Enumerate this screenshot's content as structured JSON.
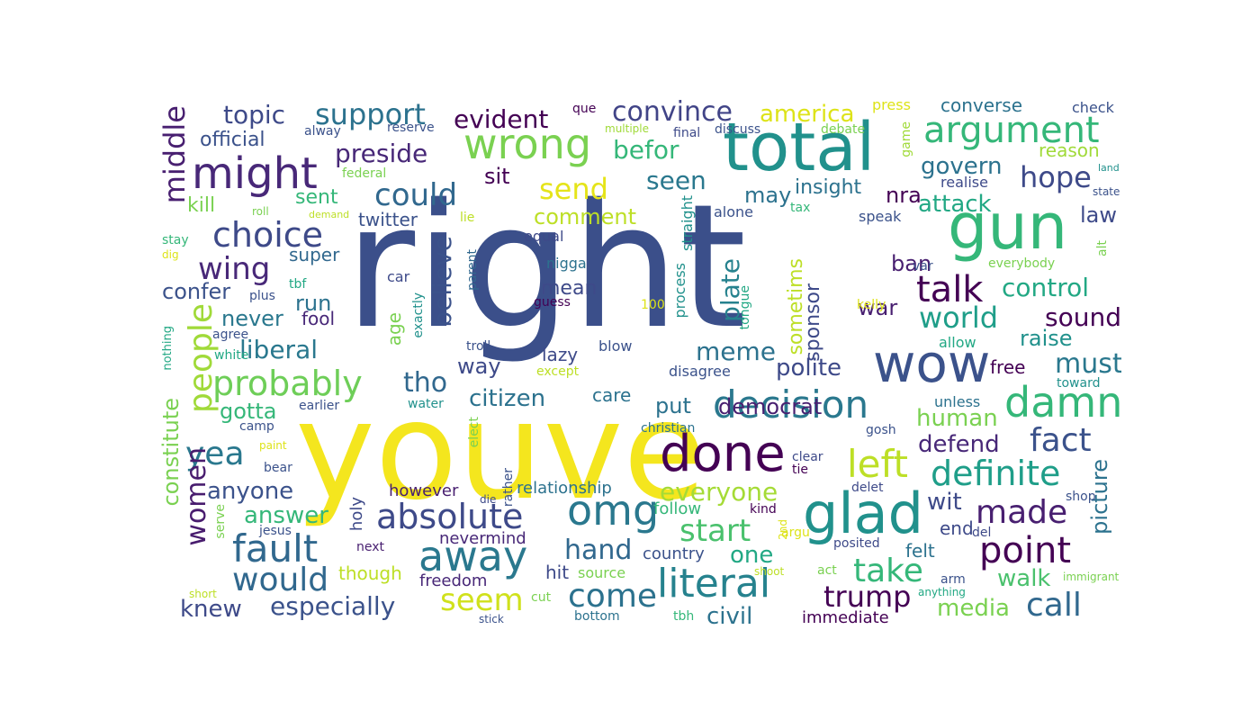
{
  "colors": {
    "background": "#ffffff",
    "palette": [
      "#440154",
      "#3b528b",
      "#21918c",
      "#5ec962",
      "#fde725",
      "#31688e",
      "#35b779",
      "#90d743",
      "#443983",
      "#1f9e89"
    ]
  },
  "words": [
    {
      "text": "right",
      "color": "#3b4f8a"
    },
    {
      "text": "youve",
      "color": "#f4e61e"
    },
    {
      "text": "total",
      "color": "#21918c"
    },
    {
      "text": "gun",
      "color": "#35b779"
    },
    {
      "text": "wow",
      "color": "#3b528b"
    },
    {
      "text": "glad",
      "color": "#21918c"
    },
    {
      "text": "done",
      "color": "#440154"
    },
    {
      "text": "wrong",
      "color": "#7ad151"
    },
    {
      "text": "might",
      "color": "#482878"
    },
    {
      "text": "fault",
      "color": "#31688e"
    },
    {
      "text": "decision",
      "color": "#2a788e"
    },
    {
      "text": "damn",
      "color": "#35b779"
    },
    {
      "text": "literal",
      "color": "#26828e"
    },
    {
      "text": "point",
      "color": "#440154"
    },
    {
      "text": "omg",
      "color": "#2a788e"
    },
    {
      "text": "argument",
      "color": "#35b779"
    },
    {
      "text": "absolute",
      "color": "#3e4a89"
    },
    {
      "text": "away",
      "color": "#2a788e"
    },
    {
      "text": "left",
      "color": "#bddf26"
    },
    {
      "text": "definite",
      "color": "#1f9e89"
    },
    {
      "text": "probably",
      "color": "#6ece58"
    },
    {
      "text": "choice",
      "color": "#3e4a89"
    },
    {
      "text": "talk",
      "color": "#440154"
    },
    {
      "text": "would",
      "color": "#31688e"
    },
    {
      "text": "come",
      "color": "#2c728e"
    },
    {
      "text": "fact",
      "color": "#3b528b"
    },
    {
      "text": "made",
      "color": "#481f70"
    },
    {
      "text": "yea",
      "color": "#2a788e"
    },
    {
      "text": "people",
      "color": "#a0da39"
    },
    {
      "text": "could",
      "color": "#31688e"
    },
    {
      "text": "take",
      "color": "#35b779"
    },
    {
      "text": "women",
      "color": "#481c6e"
    },
    {
      "text": "wing",
      "color": "#482878"
    },
    {
      "text": "seem",
      "color": "#d0e11c"
    },
    {
      "text": "start",
      "color": "#4ac16d"
    },
    {
      "text": "call",
      "color": "#31688e"
    },
    {
      "text": "trump",
      "color": "#440154"
    },
    {
      "text": "hand",
      "color": "#31688e"
    },
    {
      "text": "send",
      "color": "#e5e419"
    },
    {
      "text": "middle",
      "color": "#481f70"
    },
    {
      "text": "world",
      "color": "#1f9e89"
    },
    {
      "text": "support",
      "color": "#2c728e"
    },
    {
      "text": "convince",
      "color": "#414487"
    },
    {
      "text": "hope",
      "color": "#3e4a89"
    },
    {
      "text": "tho",
      "color": "#31688e"
    },
    {
      "text": "believe",
      "color": "#3b528b"
    },
    {
      "text": "plate",
      "color": "#26828e"
    },
    {
      "text": "meme",
      "color": "#2c728e"
    },
    {
      "text": "everyone",
      "color": "#a5db36"
    },
    {
      "text": "liberal",
      "color": "#2a788e"
    },
    {
      "text": "topic",
      "color": "#3e4a89"
    },
    {
      "text": "preside",
      "color": "#482878"
    },
    {
      "text": "evident",
      "color": "#440154"
    },
    {
      "text": "america",
      "color": "#dde318"
    },
    {
      "text": "seen",
      "color": "#2a788e"
    },
    {
      "text": "befor",
      "color": "#35b779"
    },
    {
      "text": "govern",
      "color": "#2c728e"
    },
    {
      "text": "attack",
      "color": "#22a884"
    },
    {
      "text": "control",
      "color": "#22a884"
    },
    {
      "text": "must",
      "color": "#2a788e"
    },
    {
      "text": "sound",
      "color": "#440154"
    },
    {
      "text": "picture",
      "color": "#2c728e"
    },
    {
      "text": "especially",
      "color": "#3b528b"
    },
    {
      "text": "civil",
      "color": "#2c728e"
    },
    {
      "text": "media",
      "color": "#7ad151"
    },
    {
      "text": "walk",
      "color": "#4ac16d"
    },
    {
      "text": "constitute",
      "color": "#7ad151"
    },
    {
      "text": "answer",
      "color": "#35b779"
    },
    {
      "text": "anyone",
      "color": "#3b528b"
    },
    {
      "text": "knew",
      "color": "#3e4a89"
    },
    {
      "text": "citizen",
      "color": "#2c728e"
    },
    {
      "text": "polite",
      "color": "#3e4a89"
    },
    {
      "text": "democrat",
      "color": "#481f70"
    },
    {
      "text": "human",
      "color": "#7ad151"
    },
    {
      "text": "defend",
      "color": "#482878"
    },
    {
      "text": "wit",
      "color": "#3e4a89"
    },
    {
      "text": "one",
      "color": "#22a884"
    },
    {
      "text": "never",
      "color": "#2a788e"
    },
    {
      "text": "run",
      "color": "#2c728e"
    },
    {
      "text": "confer",
      "color": "#3b528b"
    },
    {
      "text": "gotta",
      "color": "#35b779"
    },
    {
      "text": "comment",
      "color": "#bddf26"
    },
    {
      "text": "way",
      "color": "#3e4a89"
    },
    {
      "text": "put",
      "color": "#2c728e"
    },
    {
      "text": "raise",
      "color": "#21918c"
    },
    {
      "text": "sometims",
      "color": "#bddf26"
    },
    {
      "text": "sponsor",
      "color": "#3e4a89"
    },
    {
      "text": "ban",
      "color": "#481f70"
    },
    {
      "text": "war",
      "color": "#481f70"
    },
    {
      "text": "may",
      "color": "#2c728e"
    },
    {
      "text": "insight",
      "color": "#2c728e"
    },
    {
      "text": "nra",
      "color": "#440154"
    },
    {
      "text": "law",
      "color": "#3e4a89"
    },
    {
      "text": "sit",
      "color": "#440154"
    },
    {
      "text": "sent",
      "color": "#35b779"
    },
    {
      "text": "kill",
      "color": "#7ad151"
    },
    {
      "text": "official",
      "color": "#3b528b"
    },
    {
      "text": "twitter",
      "color": "#3b528b"
    },
    {
      "text": "super",
      "color": "#31688e"
    },
    {
      "text": "mean",
      "color": "#3e4a89"
    },
    {
      "text": "age",
      "color": "#7ad151"
    },
    {
      "text": "lazy",
      "color": "#3e4a89"
    },
    {
      "text": "care",
      "color": "#2c728e"
    },
    {
      "text": "free",
      "color": "#440154"
    },
    {
      "text": "fool",
      "color": "#482878"
    },
    {
      "text": "though",
      "color": "#bddf26"
    },
    {
      "text": "freedom",
      "color": "#482878"
    },
    {
      "text": "relationship",
      "color": "#2c728e"
    },
    {
      "text": "follow",
      "color": "#35b779"
    },
    {
      "text": "country",
      "color": "#3b528b"
    },
    {
      "text": "nevermind",
      "color": "#482878"
    },
    {
      "text": "however",
      "color": "#481f70"
    },
    {
      "text": "holy",
      "color": "#3e4a89"
    },
    {
      "text": "hit",
      "color": "#3e4a89"
    },
    {
      "text": "end",
      "color": "#3e4a89"
    },
    {
      "text": "felt",
      "color": "#2c728e"
    },
    {
      "text": "immediate",
      "color": "#440154"
    },
    {
      "text": "converse",
      "color": "#2c728e"
    },
    {
      "text": "reason",
      "color": "#a0da39"
    },
    {
      "text": "check",
      "color": "#3b528b"
    },
    {
      "text": "realise",
      "color": "#3e4a89"
    },
    {
      "text": "press",
      "color": "#dde318"
    },
    {
      "text": "game",
      "color": "#a0da39"
    },
    {
      "text": "alone",
      "color": "#3b528b"
    },
    {
      "text": "speak",
      "color": "#3b528b"
    },
    {
      "text": "tax",
      "color": "#35b779"
    },
    {
      "text": "equal",
      "color": "#3e4a89"
    },
    {
      "text": "nigga",
      "color": "#2c728e"
    },
    {
      "text": "var",
      "color": "#3b528b"
    },
    {
      "text": "alt",
      "color": "#7ad151"
    },
    {
      "text": "everybody",
      "color": "#7ad151"
    },
    {
      "text": "kelly",
      "color": "#dde318"
    },
    {
      "text": "allow",
      "color": "#22a884"
    },
    {
      "text": "tongue",
      "color": "#22a884"
    },
    {
      "text": "straight",
      "color": "#21918c"
    },
    {
      "text": "process",
      "color": "#21918c"
    },
    {
      "text": "blow",
      "color": "#3b528b"
    },
    {
      "text": "disagree",
      "color": "#3b528b"
    },
    {
      "text": "except",
      "color": "#bddf26"
    },
    {
      "text": "troll",
      "color": "#3b528b"
    },
    {
      "text": "guess",
      "color": "#440154"
    },
    {
      "text": "100",
      "color": "#dde318"
    },
    {
      "text": "parent",
      "color": "#31688e"
    },
    {
      "text": "exactly",
      "color": "#21918c"
    },
    {
      "text": "car",
      "color": "#3e4a89"
    },
    {
      "text": "plus",
      "color": "#3b528b"
    },
    {
      "text": "agree",
      "color": "#3b528b"
    },
    {
      "text": "white",
      "color": "#22a884"
    },
    {
      "text": "nothing",
      "color": "#22a884"
    },
    {
      "text": "stay",
      "color": "#35b779"
    },
    {
      "text": "dig",
      "color": "#dde318"
    },
    {
      "text": "tbf",
      "color": "#22a884"
    },
    {
      "text": "roll",
      "color": "#7ad151"
    },
    {
      "text": "demand",
      "color": "#bddf26"
    },
    {
      "text": "lie",
      "color": "#bddf26"
    },
    {
      "text": "federal",
      "color": "#7ad151"
    },
    {
      "text": "alway",
      "color": "#3b528b"
    },
    {
      "text": "reserve",
      "color": "#3b528b"
    },
    {
      "text": "que",
      "color": "#440154"
    },
    {
      "text": "multiple",
      "color": "#a0da39"
    },
    {
      "text": "final",
      "color": "#3e4a89"
    },
    {
      "text": "discuss",
      "color": "#3b528b"
    },
    {
      "text": "debate",
      "color": "#7ad151"
    },
    {
      "text": "land",
      "color": "#21918c"
    },
    {
      "text": "state",
      "color": "#3b528b"
    },
    {
      "text": "earlier",
      "color": "#3b528b"
    },
    {
      "text": "water",
      "color": "#21918c"
    },
    {
      "text": "camp",
      "color": "#3b528b"
    },
    {
      "text": "paint",
      "color": "#dde318"
    },
    {
      "text": "bear",
      "color": "#3b528b"
    },
    {
      "text": "serve",
      "color": "#7ad151"
    },
    {
      "text": "jesus",
      "color": "#3b528b"
    },
    {
      "text": "next",
      "color": "#481f70"
    },
    {
      "text": "elect",
      "color": "#7ad151"
    },
    {
      "text": "rather",
      "color": "#3b528b"
    },
    {
      "text": "die",
      "color": "#3e4a89"
    },
    {
      "text": "christian",
      "color": "#2c728e"
    },
    {
      "text": "gosh",
      "color": "#3b528b"
    },
    {
      "text": "clear",
      "color": "#3e4a89"
    },
    {
      "text": "tie",
      "color": "#440154"
    },
    {
      "text": "delet",
      "color": "#3e4a89"
    },
    {
      "text": "kind",
      "color": "#440154"
    },
    {
      "text": "2nd",
      "color": "#dde318"
    },
    {
      "text": "argu",
      "color": "#dde318"
    },
    {
      "text": "posited",
      "color": "#3e4a89"
    },
    {
      "text": "del",
      "color": "#3e4a89"
    },
    {
      "text": "shop",
      "color": "#3b528b"
    },
    {
      "text": "source",
      "color": "#7ad151"
    },
    {
      "text": "shoot",
      "color": "#bddf26"
    },
    {
      "text": "act",
      "color": "#7ad151"
    },
    {
      "text": "arm",
      "color": "#3b528b"
    },
    {
      "text": "immigrant",
      "color": "#7ad151"
    },
    {
      "text": "anything",
      "color": "#22a884"
    },
    {
      "text": "cut",
      "color": "#7ad151"
    },
    {
      "text": "stick",
      "color": "#3b528b"
    },
    {
      "text": "bottom",
      "color": "#2c728e"
    },
    {
      "text": "tbh",
      "color": "#35b779"
    },
    {
      "text": "short",
      "color": "#bddf26"
    },
    {
      "text": "unless",
      "color": "#2c728e"
    },
    {
      "text": "toward",
      "color": "#21918c"
    }
  ]
}
